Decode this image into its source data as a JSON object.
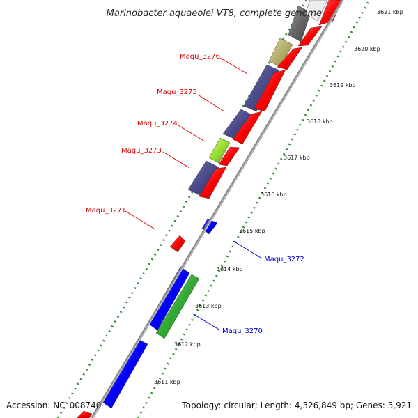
{
  "title": "Marinobacter aquaeolei VT8, complete genome",
  "footer": {
    "accession": "Accession: NC_008740",
    "summary": "Topology: circular; Length: 4,326,849 bp; Genes: 3,921"
  },
  "ticks": [
    {
      "label": "3611 kbp"
    },
    {
      "label": "3612 kbp"
    },
    {
      "label": "3613 kbp"
    },
    {
      "label": "3614 kbp"
    },
    {
      "label": "3615 kbp"
    },
    {
      "label": "3616 kbp"
    },
    {
      "label": "3617 kbp"
    },
    {
      "label": "3618 kbp"
    },
    {
      "label": "3619 kbp"
    },
    {
      "label": "3620 kbp"
    },
    {
      "label": "3621 kbp"
    }
  ],
  "gene_labels": [
    {
      "text": "Maqu_3276",
      "strand": "forward"
    },
    {
      "text": "Maqu_3275",
      "strand": "forward"
    },
    {
      "text": "Maqu_3274",
      "strand": "forward"
    },
    {
      "text": "Maqu_3273",
      "strand": "forward"
    },
    {
      "text": "Maqu_3271",
      "strand": "forward"
    },
    {
      "text": "Maqu_3272",
      "strand": "reverse"
    },
    {
      "text": "Maqu_3270",
      "strand": "reverse"
    }
  ],
  "colors": {
    "forward_label": "#dd0000",
    "reverse_label": "#0000cc",
    "cds_red": "#ff0000",
    "cds_blue": "#0000ff",
    "cds_green": "#33aa33",
    "cds_purple": "#4a4a8c",
    "cds_yellowgreen": "#99dd33",
    "cds_khaki": "#b5b06a",
    "cds_gray": "#666666",
    "backbone": "#8c8c8c",
    "tick_dots": "#2e8b2e"
  }
}
